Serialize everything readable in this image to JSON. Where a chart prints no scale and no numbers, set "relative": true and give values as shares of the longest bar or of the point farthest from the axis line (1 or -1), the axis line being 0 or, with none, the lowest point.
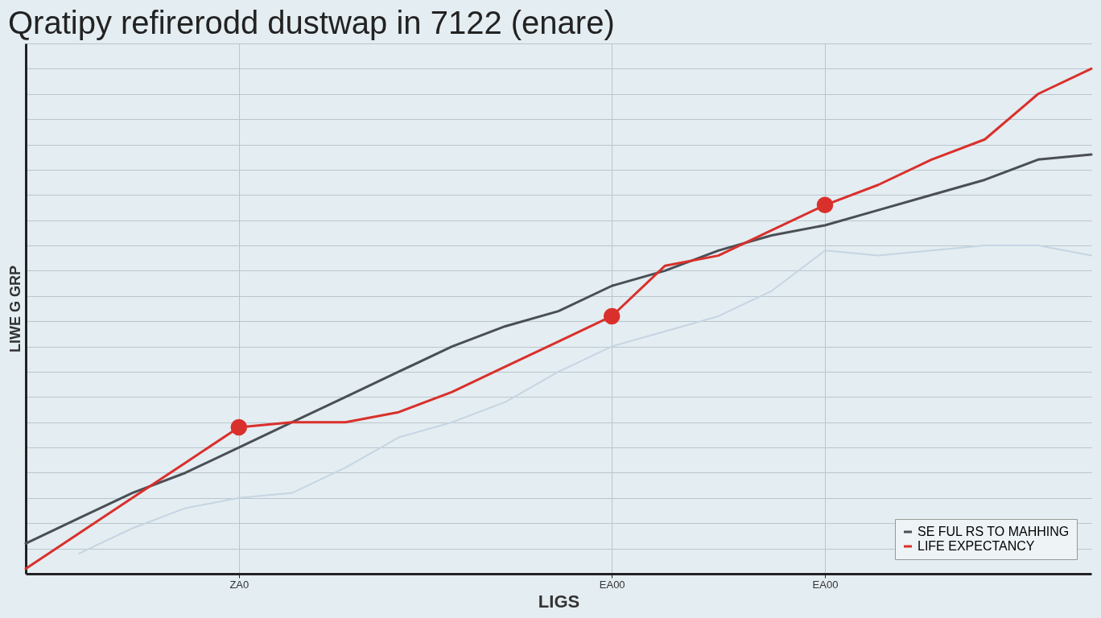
{
  "chart_data": {
    "type": "line",
    "title": "Qratipy refirerodd dustwap in 7122 (enare)",
    "xlabel": "LIGS",
    "ylabel": "LIWE G GRP",
    "relative": true,
    "categories": [
      null,
      null,
      null,
      null,
      "ZA0",
      null,
      null,
      null,
      null,
      null,
      null,
      "EA00",
      null,
      null,
      null,
      "EA00",
      null,
      null,
      null,
      null,
      null
    ],
    "grid": true,
    "legend": "bottom right",
    "tick_labels": "x",
    "series": [
      {
        "name": "SE FUL RS TO MAHHING",
        "color": "#4a4f55",
        "values": [
          0.06,
          0.11,
          0.16,
          0.2,
          0.25,
          0.3,
          0.35,
          0.4,
          0.45,
          0.49,
          0.52,
          0.57,
          0.6,
          0.64,
          0.67,
          0.69,
          0.72,
          0.75,
          0.78,
          0.82,
          0.83
        ]
      },
      {
        "name": "LIFE EXPECTANCY",
        "color": "#d9302c",
        "values": [
          0.01,
          0.08,
          0.15,
          0.22,
          0.29,
          0.3,
          0.3,
          0.32,
          0.36,
          0.41,
          0.46,
          0.51,
          0.61,
          0.63,
          0.68,
          0.73,
          0.77,
          0.82,
          0.86,
          0.95,
          1
        ]
      },
      {
        "color": "#c5d5e3",
        "values": [
          null,
          0.04,
          0.09,
          0.13,
          0.15,
          0.16,
          0.21,
          0.27,
          0.3,
          0.34,
          0.4,
          0.45,
          0.48,
          0.51,
          0.56,
          0.64,
          0.63,
          0.64,
          0.65,
          0.65,
          0.63
        ]
      },
      {
        "type": "scatter",
        "marker": "circle",
        "color": "#d9302c",
        "values": [
          null,
          null,
          null,
          null,
          0.29,
          null,
          null,
          null,
          null,
          null,
          null,
          0.51,
          null,
          null,
          null,
          0.73,
          null,
          null,
          null,
          null,
          null
        ]
      }
    ]
  }
}
